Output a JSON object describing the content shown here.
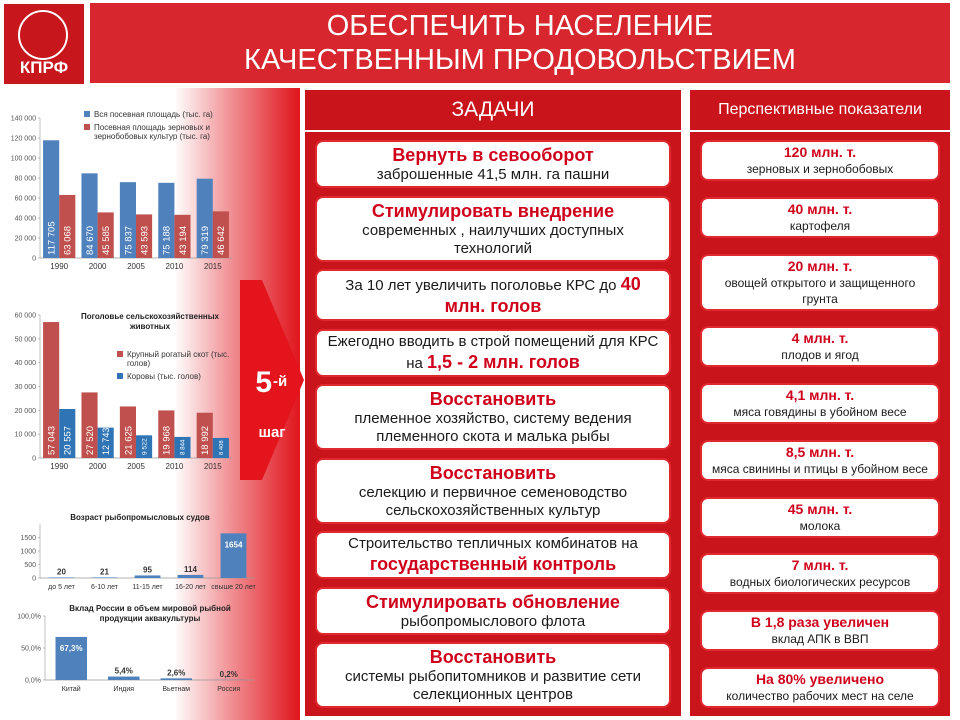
{
  "header": {
    "logo": "КПРФ",
    "title": [
      "ОБЕСПЕЧИТЬ НАСЕЛЕНИЕ",
      "КАЧЕСТВЕННЫМ ПРОДОВОЛЬСТВИЕМ"
    ]
  },
  "step": {
    "number": "5",
    "suffix": "-й",
    "word": "шаг"
  },
  "tasks": {
    "title": "ЗАДАЧИ",
    "items": [
      {
        "accent": "Вернуть в севооборот",
        "body": "заброшенные 41,5 млн. га пашни"
      },
      {
        "accent": "Стимулировать внедрение",
        "body": "современных , наилучших доступных технологий"
      },
      {
        "lead": "За 10 лет увеличить поголовье КРС до",
        "accent": "40 млн. голов"
      },
      {
        "lead": "Ежегодно вводить в строй помещений для КРС на",
        "accent": "1,5 - 2 млн. голов"
      },
      {
        "accent": "Восстановить",
        "body": "племенное хозяйство, систему ведения племенного скота и малька рыбы"
      },
      {
        "accent": "Восстановить",
        "body": "селекцию и первичное семеноводство сельскохозяйственных культур"
      },
      {
        "lead": "Строительство тепличных комбинатов на",
        "accent": "государственный контроль"
      },
      {
        "accent": "Стимулировать обновление",
        "body": "рыбопромыслового флота"
      },
      {
        "accent": "Восстановить",
        "body": "системы рыбопитомников и развитие сети селекционных центров"
      }
    ]
  },
  "indicators": {
    "title": "Перспективные показатели",
    "items": [
      {
        "value": "120 млн. т.",
        "desc": "зерновых и зернобобовых"
      },
      {
        "value": "40 млн. т.",
        "desc": "картофеля"
      },
      {
        "value": "20 млн. т.",
        "desc": "овощей открытого и защищенного грунта"
      },
      {
        "value": "4 млн. т.",
        "desc": "плодов и ягод"
      },
      {
        "value": "4,1 млн. т.",
        "desc": "мяса говядины в убойном весе"
      },
      {
        "value": "8,5 млн. т.",
        "desc": "мяса свинины и птицы в убойном весе"
      },
      {
        "value": "45 млн. т.",
        "desc": "молока"
      },
      {
        "value": "7 млн. т.",
        "desc": "водных биологических ресурсов"
      },
      {
        "value": "В 1,8 раза увеличен",
        "desc": "вклад АПК в ВВП"
      },
      {
        "value": "На 80% увеличено",
        "desc": "количество рабочих мест на селе"
      }
    ]
  },
  "chart_data": [
    {
      "type": "bar",
      "categories": [
        "1990",
        "2000",
        "2005",
        "2010",
        "2015"
      ],
      "series": [
        {
          "name": "Вся посевная площадь (тыс. га)",
          "color": "#4f81bd",
          "values": [
            117705,
            84670,
            75837,
            75188,
            79319
          ],
          "value_labels": [
            "117 705",
            "84 670",
            "75 837",
            "75 188",
            "79 319"
          ]
        },
        {
          "name": "Посевная площадь зерновых и зернобобовых культур (тыс. га)",
          "color": "#c0504d",
          "values": [
            63068,
            45585,
            43593,
            43194,
            46642
          ],
          "value_labels": [
            "63 068",
            "45 585",
            "43 593",
            "43 194",
            "46 642"
          ]
        }
      ],
      "ylim": [
        0,
        140000
      ],
      "yticks": [
        0,
        {
          "value": 20000,
          "label": "20 000"
        },
        {
          "value": 40000,
          "label": "40 000"
        },
        {
          "value": 60000,
          "label": "60 000"
        },
        {
          "value": 80000,
          "label": "80 000"
        },
        {
          "value": 100000,
          "label": "100 000"
        },
        {
          "value": 120000,
          "label": "120 000"
        },
        {
          "value": 140000,
          "label": "140 000"
        }
      ]
    },
    {
      "type": "bar",
      "title": "Поголовье сельскохозяйственных животных",
      "categories": [
        "1990",
        "2000",
        "2005",
        "2010",
        "2015"
      ],
      "series": [
        {
          "name": "Крупный рогатый скот (тыс. голов)",
          "color": "#c0504d",
          "values": [
            57043,
            27520,
            21625,
            19968,
            18992
          ],
          "value_labels": [
            "57 043",
            "27 520",
            "21 625",
            "19 968",
            "18 992"
          ]
        },
        {
          "name": "Коровы (тыс. голов)",
          "color": "#2f75b5",
          "values": [
            20557,
            12743,
            9522,
            8844,
            8408
          ],
          "value_labels": [
            "20 557",
            "12 743",
            "9 522",
            "8 844",
            "8 408"
          ]
        }
      ],
      "ylim": [
        0,
        60000
      ],
      "yticks": [
        0,
        {
          "value": 10000,
          "label": "10 000"
        },
        {
          "value": 20000,
          "label": "20 000"
        },
        {
          "value": 30000,
          "label": "30 000"
        },
        {
          "value": 40000,
          "label": "40 000"
        },
        {
          "value": 50000,
          "label": "50 000"
        },
        {
          "value": 60000,
          "label": "60 000"
        }
      ]
    },
    {
      "type": "bar",
      "title": "Возраст рыбопромысловых судов",
      "categories": [
        "до 5 лет",
        "6-10 лет",
        "11-15 лет",
        "16-20 лет",
        "свыше 20 лет"
      ],
      "values": [
        20,
        21,
        95,
        114,
        1654
      ],
      "color": "#4f81bd",
      "ylim": [
        0,
        2000
      ],
      "yticks": [
        0,
        500,
        1000,
        1500
      ]
    },
    {
      "type": "bar",
      "title": "Вклад России в объем мировой рыбной продукции аквакультуры",
      "categories": [
        "Китай",
        "Индия",
        "Вьетнам",
        "Россия"
      ],
      "values": [
        67.3,
        5.4,
        2.6,
        0.2
      ],
      "value_labels": [
        "67,3%",
        "5,4%",
        "2,6%",
        "0,2%"
      ],
      "color": "#4f81bd",
      "ylim": [
        0,
        100
      ],
      "yticks": [
        {
          "value": 0,
          "label": "0,0%"
        },
        {
          "value": 50,
          "label": "50,0%"
        },
        {
          "value": 100,
          "label": "100,0%"
        }
      ]
    }
  ]
}
